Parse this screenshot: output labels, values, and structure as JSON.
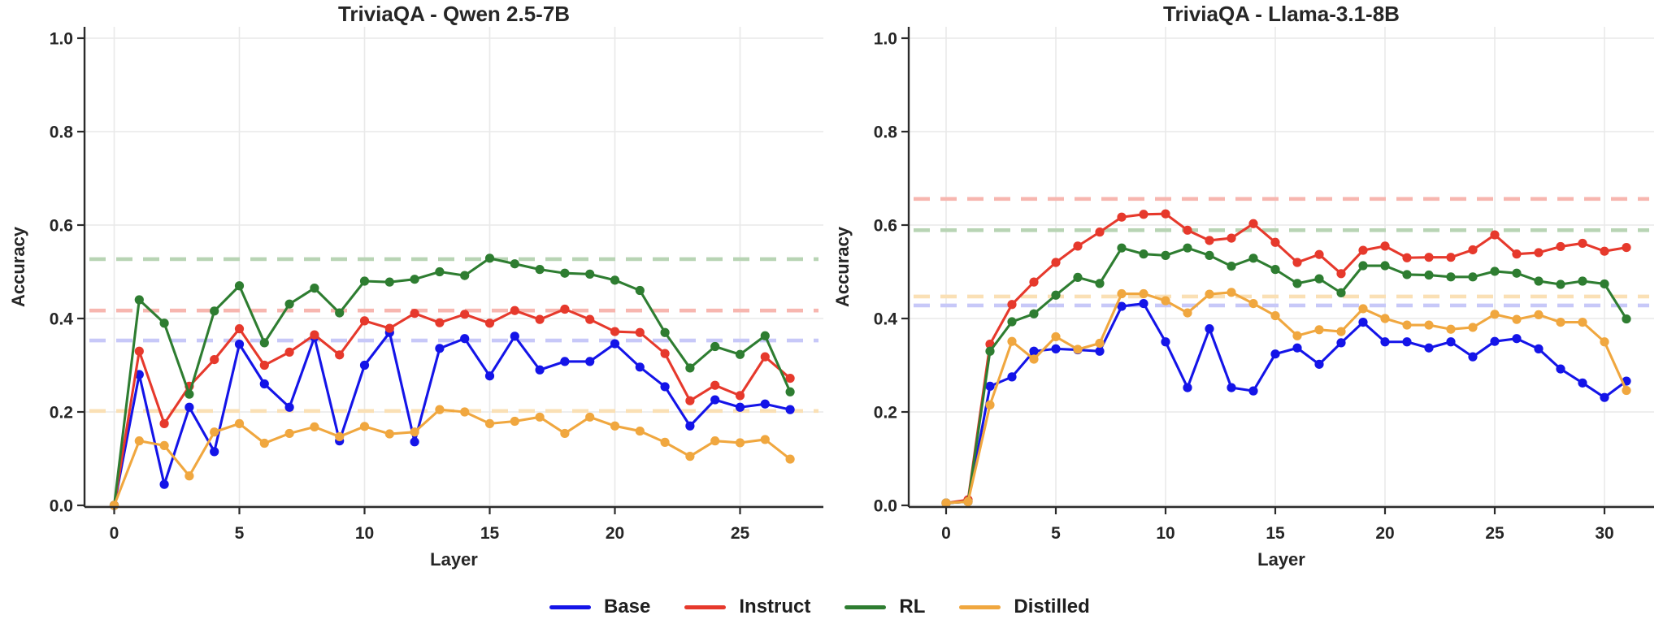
{
  "page": {
    "background": "#ffffff"
  },
  "legend": {
    "items": [
      {
        "label": "Base",
        "color": "#1414e8"
      },
      {
        "label": "Instruct",
        "color": "#e6392c"
      },
      {
        "label": "RL",
        "color": "#2e7d31"
      },
      {
        "label": "Distilled",
        "color": "#f0a73f"
      }
    ]
  },
  "chart_data": [
    {
      "type": "line",
      "title": "TriviaQA - Qwen 2.5-7B",
      "xlabel": "Layer",
      "ylabel": "Accuracy",
      "x": [
        0,
        1,
        2,
        3,
        4,
        5,
        6,
        7,
        8,
        9,
        10,
        11,
        12,
        13,
        14,
        15,
        16,
        17,
        18,
        19,
        20,
        21,
        22,
        23,
        24,
        25,
        26,
        27
      ],
      "xticks": [
        0,
        5,
        10,
        15,
        20,
        25
      ],
      "yticks": [
        0.0,
        0.2,
        0.4,
        0.6,
        0.8,
        1.0
      ],
      "ylim": [
        0.0,
        1.0
      ],
      "grid": true,
      "legend_position": "bottom-center",
      "series": [
        {
          "name": "Base",
          "color": "#1414e8",
          "values": [
            0.0,
            0.28,
            0.045,
            0.21,
            0.115,
            0.345,
            0.26,
            0.21,
            0.36,
            0.138,
            0.3,
            0.37,
            0.136,
            0.336,
            0.357,
            0.277,
            0.362,
            0.29,
            0.308,
            0.308,
            0.346,
            0.296,
            0.254,
            0.17,
            0.226,
            0.21,
            0.217,
            0.205
          ]
        },
        {
          "name": "Instruct",
          "color": "#e6392c",
          "values": [
            0.0,
            0.33,
            0.175,
            0.255,
            0.312,
            0.378,
            0.3,
            0.328,
            0.365,
            0.322,
            0.395,
            0.379,
            0.411,
            0.391,
            0.409,
            0.39,
            0.417,
            0.398,
            0.42,
            0.398,
            0.372,
            0.37,
            0.325,
            0.224,
            0.257,
            0.235,
            0.318,
            0.272
          ]
        },
        {
          "name": "RL",
          "color": "#2e7d31",
          "values": [
            0.0,
            0.44,
            0.39,
            0.238,
            0.416,
            0.47,
            0.348,
            0.431,
            0.465,
            0.412,
            0.48,
            0.478,
            0.484,
            0.5,
            0.492,
            0.529,
            0.517,
            0.505,
            0.497,
            0.495,
            0.482,
            0.46,
            0.37,
            0.294,
            0.34,
            0.323,
            0.363,
            0.243
          ]
        },
        {
          "name": "Distilled",
          "color": "#f0a73f",
          "values": [
            0.0,
            0.138,
            0.128,
            0.063,
            0.157,
            0.175,
            0.133,
            0.154,
            0.168,
            0.147,
            0.169,
            0.153,
            0.157,
            0.205,
            0.2,
            0.175,
            0.18,
            0.189,
            0.154,
            0.189,
            0.17,
            0.159,
            0.135,
            0.105,
            0.138,
            0.134,
            0.141,
            0.099
          ]
        }
      ],
      "baselines": [
        {
          "series": "Base",
          "value": 0.353,
          "color": "#c7c8f8"
        },
        {
          "series": "Instruct",
          "value": 0.417,
          "color": "#f7b6af"
        },
        {
          "series": "RL",
          "value": 0.527,
          "color": "#b8d4b4"
        },
        {
          "series": "Distilled",
          "value": 0.202,
          "color": "#fae0b5"
        }
      ]
    },
    {
      "type": "line",
      "title": "TriviaQA - Llama-3.1-8B",
      "xlabel": "Layer",
      "ylabel": "Accuracy",
      "x": [
        0,
        1,
        2,
        3,
        4,
        5,
        6,
        7,
        8,
        9,
        10,
        11,
        12,
        13,
        14,
        15,
        16,
        17,
        18,
        19,
        20,
        21,
        22,
        23,
        24,
        25,
        26,
        27,
        28,
        29,
        30,
        31
      ],
      "xticks": [
        0,
        5,
        10,
        15,
        20,
        25,
        30
      ],
      "yticks": [
        0.0,
        0.2,
        0.4,
        0.6,
        0.8,
        1.0
      ],
      "ylim": [
        0.0,
        1.0
      ],
      "grid": true,
      "legend_position": "bottom-center",
      "series": [
        {
          "name": "Base",
          "color": "#1414e8",
          "values": [
            0.005,
            0.008,
            0.255,
            0.275,
            0.33,
            0.335,
            0.333,
            0.33,
            0.426,
            0.432,
            0.35,
            0.252,
            0.378,
            0.252,
            0.245,
            0.324,
            0.337,
            0.302,
            0.348,
            0.392,
            0.35,
            0.35,
            0.337,
            0.35,
            0.318,
            0.351,
            0.357,
            0.335,
            0.292,
            0.262,
            0.231,
            0.266
          ]
        },
        {
          "name": "Instruct",
          "color": "#e6392c",
          "values": [
            0.005,
            0.012,
            0.345,
            0.43,
            0.478,
            0.52,
            0.555,
            0.585,
            0.617,
            0.623,
            0.624,
            0.589,
            0.567,
            0.572,
            0.603,
            0.563,
            0.52,
            0.537,
            0.496,
            0.546,
            0.555,
            0.53,
            0.531,
            0.531,
            0.547,
            0.579,
            0.538,
            0.541,
            0.554,
            0.561,
            0.544,
            0.552
          ]
        },
        {
          "name": "RL",
          "color": "#2e7d31",
          "values": [
            0.005,
            0.008,
            0.33,
            0.393,
            0.41,
            0.45,
            0.488,
            0.475,
            0.551,
            0.538,
            0.535,
            0.551,
            0.535,
            0.512,
            0.529,
            0.505,
            0.475,
            0.485,
            0.455,
            0.513,
            0.513,
            0.494,
            0.493,
            0.489,
            0.489,
            0.501,
            0.497,
            0.48,
            0.473,
            0.48,
            0.474,
            0.399
          ]
        },
        {
          "name": "Distilled",
          "color": "#f0a73f",
          "values": [
            0.005,
            0.008,
            0.215,
            0.351,
            0.313,
            0.361,
            0.334,
            0.347,
            0.453,
            0.453,
            0.438,
            0.412,
            0.452,
            0.456,
            0.432,
            0.406,
            0.363,
            0.376,
            0.372,
            0.421,
            0.4,
            0.386,
            0.386,
            0.377,
            0.381,
            0.409,
            0.398,
            0.408,
            0.392,
            0.392,
            0.35,
            0.246
          ]
        }
      ],
      "baselines": [
        {
          "series": "Base",
          "value": 0.428,
          "color": "#c7c8f8"
        },
        {
          "series": "Instruct",
          "value": 0.656,
          "color": "#f7b6af"
        },
        {
          "series": "RL",
          "value": 0.589,
          "color": "#b8d4b4"
        },
        {
          "series": "Distilled",
          "value": 0.447,
          "color": "#fae0b5"
        }
      ]
    }
  ]
}
